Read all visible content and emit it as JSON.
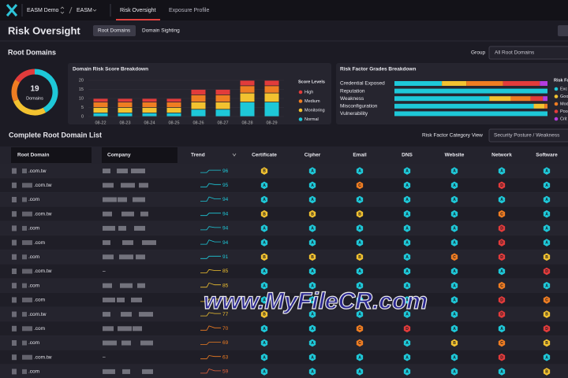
{
  "nav": {
    "org": "EASM Demo",
    "project": "EASM",
    "tabs": [
      "Risk Oversight",
      "Exposure Profile"
    ]
  },
  "header": {
    "title": "Risk Oversight",
    "toggle": [
      "Root Domains",
      "Domain Sighting"
    ]
  },
  "root_domains": {
    "title": "Root Domains",
    "group_label": "Group",
    "group_value": "All Root Domains"
  },
  "chart_data": [
    {
      "type": "donut",
      "center_value": 19,
      "center_label": "Domains",
      "values": [
        8,
        5,
        3,
        3
      ],
      "colors": [
        "#1ec8d8",
        "#f2c230",
        "#ef7d22",
        "#e23b3b"
      ]
    },
    {
      "type": "bar",
      "stacked": true,
      "title": "Domain Risk Score Breakdown",
      "categories": [
        "08-22",
        "08-23",
        "08-24",
        "08-25",
        "08-26",
        "08-27",
        "08-28",
        "08-29"
      ],
      "legend_title": "Score Levels",
      "ylim": [
        0,
        20
      ],
      "yticks": [
        0,
        5,
        10,
        15,
        20
      ],
      "series": [
        {
          "name": "High",
          "color": "#e23b3b",
          "values": [
            2,
            2,
            2,
            2,
            3,
            3,
            3,
            3
          ]
        },
        {
          "name": "Medium",
          "color": "#ef7d22",
          "values": [
            3,
            3,
            3,
            3,
            4,
            4,
            4,
            4
          ]
        },
        {
          "name": "Monitoring",
          "color": "#f2c230",
          "values": [
            3,
            3,
            3,
            3,
            4,
            4,
            5,
            5
          ]
        },
        {
          "name": "Normal",
          "color": "#1ec8d8",
          "values": [
            2,
            2,
            2,
            2,
            4,
            4,
            8,
            8
          ]
        }
      ]
    },
    {
      "type": "hbar",
      "stacked": true,
      "title": "Risk Factor Grades Breakdown",
      "categories": [
        "Credential Exposed",
        "Reputation",
        "Weakness",
        "Misconfiguration",
        "Vulnerability"
      ],
      "legend_title": "Risk Fa",
      "xlim": [
        0,
        100
      ],
      "series": [
        {
          "name": "Exc",
          "color": "#1ec8d8",
          "values": [
            31,
            100,
            62,
            91,
            100
          ]
        },
        {
          "name": "Goo",
          "color": "#f2c230",
          "values": [
            16,
            0,
            14,
            7,
            0
          ]
        },
        {
          "name": "Mod",
          "color": "#ef7d22",
          "values": [
            24,
            0,
            13,
            2,
            0
          ]
        },
        {
          "name": "Poo",
          "color": "#e23b3b",
          "values": [
            24,
            0,
            8,
            0,
            0
          ]
        },
        {
          "name": "Crit",
          "color": "#b43ce0",
          "values": [
            5,
            0,
            3,
            0,
            0
          ]
        }
      ]
    }
  ],
  "table": {
    "title": "Complete Root Domain List",
    "view_label": "Risk Factor Category View",
    "view_value": "Security Posture / Weakness",
    "columns": [
      "Root Domain",
      "Company",
      "Trend",
      "Certificate",
      "Cipher",
      "Email",
      "DNS",
      "Website",
      "Network",
      "Software"
    ],
    "grade_colors": {
      "A": "#1ec8d8",
      "B": "#f2c230",
      "C": "#ef7d22",
      "D": "#e23b3b"
    },
    "rows": [
      {
        "domain": ".com.tw",
        "score": 96,
        "score_color": "#1ec8d8",
        "grades": [
          "B",
          "A",
          "A",
          "A",
          "A",
          "A",
          "A"
        ]
      },
      {
        "domain": ".com.tw",
        "score": 95,
        "score_color": "#1ec8d8",
        "grades": [
          "A",
          "A",
          "C",
          "A",
          "A",
          "D",
          "A"
        ]
      },
      {
        "domain": ".com",
        "score": 94,
        "score_color": "#1ec8d8",
        "grades": [
          "A",
          "A",
          "A",
          "A",
          "A",
          "A",
          "A"
        ]
      },
      {
        "domain": ".com.tw",
        "score": 94,
        "score_color": "#1ec8d8",
        "grades": [
          "B",
          "B",
          "B",
          "A",
          "A",
          "C",
          "A"
        ]
      },
      {
        "domain": ".com",
        "score": 94,
        "score_color": "#1ec8d8",
        "grades": [
          "A",
          "A",
          "A",
          "A",
          "A",
          "D",
          "A"
        ]
      },
      {
        "domain": ".com",
        "score": 94,
        "score_color": "#1ec8d8",
        "grades": [
          "A",
          "A",
          "A",
          "A",
          "A",
          "D",
          "A"
        ]
      },
      {
        "domain": ".com",
        "score": 91,
        "score_color": "#1ec8d8",
        "grades": [
          "B",
          "B",
          "B",
          "A",
          "C",
          "D",
          "B"
        ]
      },
      {
        "domain": ".com.tw",
        "company": "–",
        "score": 85,
        "score_color": "#f2c230",
        "grades": [
          "A",
          "A",
          "A",
          "A",
          "A",
          "A",
          "D"
        ]
      },
      {
        "domain": ".com",
        "score": 85,
        "score_color": "#f2c230",
        "grades": [
          "A",
          "A",
          "A",
          "A",
          "A",
          "C",
          "A"
        ]
      },
      {
        "domain": ".com",
        "score": 82,
        "score_color": "#f2c230",
        "grades": [
          "A",
          "A",
          "A",
          "A",
          "A",
          "D",
          "C"
        ]
      },
      {
        "domain": ".com.tw",
        "score": 77,
        "score_color": "#f2c230",
        "grades": [
          "B",
          "A",
          "A",
          "A",
          "A",
          "D",
          "B"
        ]
      },
      {
        "domain": ".com",
        "score": 70,
        "score_color": "#ef7d22",
        "grades": [
          "A",
          "A",
          "C",
          "D",
          "A",
          "A",
          "D"
        ]
      },
      {
        "domain": ".com",
        "score": 69,
        "score_color": "#ef7d22",
        "grades": [
          "A",
          "A",
          "C",
          "A",
          "B",
          "C",
          "B"
        ]
      },
      {
        "domain": ".com.tw",
        "company": "–",
        "score": 63,
        "score_color": "#ef7d22",
        "grades": [
          "A",
          "A",
          "A",
          "A",
          "A",
          "D",
          "A"
        ]
      },
      {
        "domain": ".com",
        "score": 59,
        "score_color": "#e8643a",
        "grades": [
          "A",
          "A",
          "A",
          "A",
          "A",
          "A",
          "B"
        ]
      }
    ]
  },
  "watermark": "www.MyFileCR.com"
}
